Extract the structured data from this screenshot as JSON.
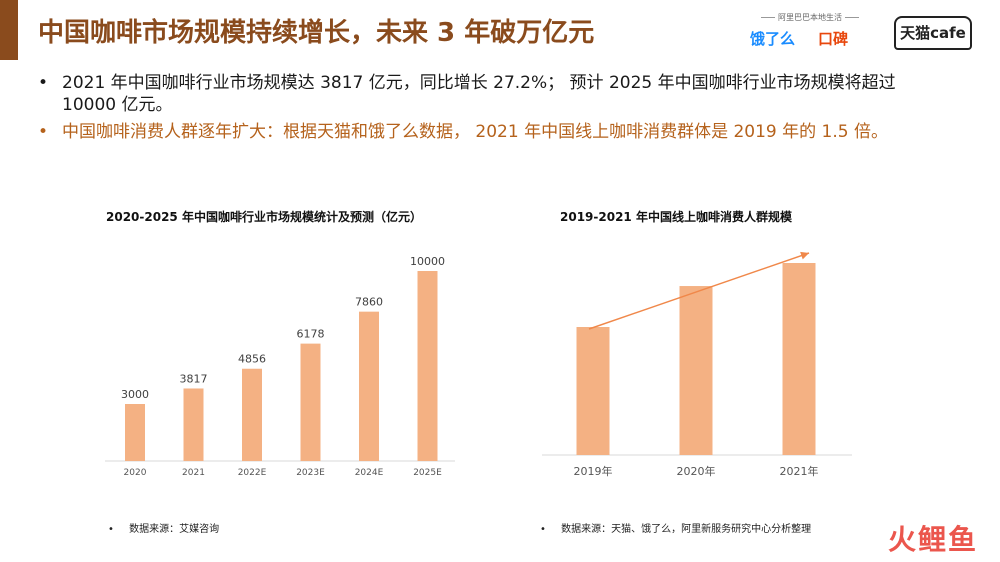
{
  "header": {
    "title": "中国咖啡市场规模持续增长，未来 3 年破万亿元",
    "logos": {
      "tagline": "阿里巴巴本地生活",
      "eleme": "饿了么",
      "koubei": "口碑",
      "tmall": "天猫cafe"
    }
  },
  "bullets": [
    {
      "symbol": "•",
      "text": "2021 年中国咖啡行业市场规模达 3817 亿元，同比增长 27.2%； 预计 2025 年中国咖啡行业市场规模将超过 10000 亿元。"
    },
    {
      "symbol": "•",
      "text": "中国咖啡消费人群逐年扩大：根据天猫和饿了么数据， 2021 年中国线上咖啡消费群体是 2019 年的 1.5 倍。"
    }
  ],
  "colors": {
    "accent": "#8a4b1d",
    "bar": "#f4b183",
    "trend": "#f0884a",
    "highlight_text": "#b5621c"
  },
  "chart_data": [
    {
      "type": "bar",
      "title": "2020-2025 年中国咖啡行业市场规模统计及预测（亿元）",
      "categories": [
        "2020",
        "2021",
        "2022E",
        "2023E",
        "2024E",
        "2025E"
      ],
      "values": [
        3000,
        3817,
        4856,
        6178,
        7860,
        10000
      ],
      "ylim": [
        0,
        10000
      ],
      "grid": false,
      "data_labels": true
    },
    {
      "type": "bar",
      "title": "2019-2021 年中国线上咖啡消费人群规模",
      "categories": [
        "2019年",
        "2020年",
        "2021年"
      ],
      "values": [
        1.0,
        1.32,
        1.5
      ],
      "ylim": [
        0,
        1.5
      ],
      "grid": false,
      "trend_arrow": true,
      "data_labels": false
    }
  ],
  "sources": [
    {
      "symbol": "•",
      "text": "数据来源：艾媒咨询"
    },
    {
      "symbol": "•",
      "text": "数据来源：天猫、饿了么，阿里新服务研究中心分析整理"
    }
  ],
  "watermark": "火鲤鱼"
}
